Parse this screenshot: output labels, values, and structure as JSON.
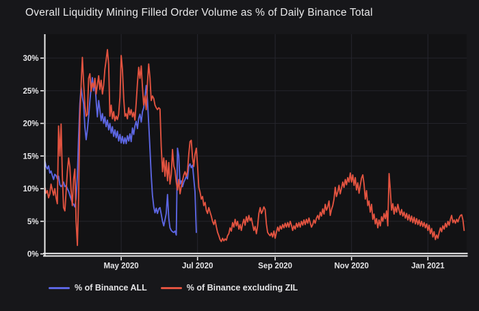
{
  "header": {
    "title": "Overall Liquidity Mining Filled Order Volume as % of Daily Binance Total"
  },
  "colors": {
    "background": "#17171a",
    "plot_background": "#121214",
    "grid": "#24242b",
    "grid_vertical": "#27272f",
    "axis": "#ededed",
    "text": "#e6e6e8",
    "title_text": "#e9e9ea",
    "series_all": "#5c66e2",
    "series_excl_zil": "#e25340"
  },
  "chart_data": {
    "type": "line",
    "title": "Overall Liquidity Mining Filled Order Volume as % of Daily Binance Total",
    "xlabel": "",
    "ylabel": "",
    "x_range": [
      "2020-03-01",
      "2021-02-01"
    ],
    "y_range": [
      0,
      33.6
    ],
    "grid": true,
    "legend_position": "bottom-left",
    "y_unit": "%",
    "x_ticks": [
      {
        "date": "2020-05-01",
        "label": "May 2020"
      },
      {
        "date": "2020-07-01",
        "label": "Jul 2020"
      },
      {
        "date": "2020-09-01",
        "label": "Sep 2020"
      },
      {
        "date": "2020-11-01",
        "label": "Nov 2020"
      },
      {
        "date": "2021-01-01",
        "label": "Jan 2021"
      }
    ],
    "y_ticks": [
      {
        "value": 0,
        "label": "0%"
      },
      {
        "value": 5,
        "label": "5%"
      },
      {
        "value": 10,
        "label": "10%"
      },
      {
        "value": 15,
        "label": "15%"
      },
      {
        "value": 20,
        "label": "20%"
      },
      {
        "value": 25,
        "label": "25%"
      },
      {
        "value": 30,
        "label": "30%"
      }
    ],
    "series": [
      {
        "name": "% of Binance ALL",
        "color": "#5c66e2",
        "start": "2020-03-01",
        "frequency": "daily",
        "values": [
          14.3,
          13.4,
          13.0,
          13.5,
          12.4,
          12.7,
          12.0,
          11.4,
          12.2,
          12.0,
          11.5,
          11.9,
          10.6,
          10.3,
          10.6,
          11.0,
          10.3,
          10.5,
          10.0,
          9.6,
          9.0,
          8.4,
          7.8,
          7.6,
          7.2,
          8.5,
          12.0,
          18.0,
          23.0,
          25.6,
          24.0,
          23.0,
          19.5,
          17.5,
          19.0,
          21.0,
          23.5,
          25.5,
          27.0,
          25.0,
          26.5,
          23.5,
          21.0,
          23.5,
          22.0,
          20.4,
          21.5,
          20.0,
          21.0,
          19.5,
          20.5,
          19.0,
          20.0,
          18.5,
          19.5,
          18.0,
          19.0,
          17.8,
          18.8,
          17.3,
          18.3,
          17.0,
          18.0,
          16.9,
          17.8,
          16.9,
          18.1,
          17.3,
          18.4,
          17.2,
          19.3,
          18.3,
          19.6,
          20.3,
          19.2,
          20.8,
          21.4,
          20.2,
          21.8,
          22.4,
          24.0,
          25.8,
          23.5,
          20.0,
          16.0,
          12.0,
          9.0,
          7.2,
          6.3,
          7.0,
          6.2,
          6.9,
          7.1,
          6.1,
          5.0,
          4.3,
          5.2,
          6.2,
          9.1,
          5.5,
          4.0,
          3.6,
          3.4,
          3.3,
          3.5,
          2.9,
          16.2,
          15.0,
          10.7,
          11.2,
          10.3,
          11.0,
          11.4,
          11.9,
          11.5,
          13.4,
          13.8,
          13.2,
          13.6,
          11.5,
          9.5,
          3.3
        ]
      },
      {
        "name": "% of Binance excluding ZIL",
        "color": "#e25340",
        "start": "2020-03-01",
        "frequency": "daily",
        "values": [
          10.3,
          9.3,
          9.7,
          8.6,
          9.2,
          10.7,
          9.8,
          9.0,
          10.0,
          8.6,
          7.7,
          19.6,
          15.0,
          19.9,
          12.0,
          7.1,
          6.6,
          9.5,
          12.6,
          14.7,
          13.3,
          9.8,
          7.4,
          11.5,
          13.0,
          5.0,
          1.3,
          9.0,
          21.0,
          26.0,
          30.1,
          26.2,
          22.8,
          21.1,
          21.4,
          26.9,
          27.6,
          24.9,
          26.2,
          25.5,
          26.9,
          24.5,
          25.9,
          27.3,
          25.2,
          26.6,
          24.5,
          25.9,
          28.3,
          29.7,
          31.3,
          29.0,
          21.1,
          22.8,
          20.7,
          21.8,
          20.4,
          21.1,
          20.6,
          21.4,
          24.0,
          30.4,
          28.3,
          23.8,
          21.1,
          21.5,
          20.7,
          22.4,
          21.3,
          22.1,
          21.0,
          21.7,
          20.5,
          23.1,
          26.2,
          28.6,
          26.9,
          28.8,
          25.5,
          22.8,
          24.2,
          22.1,
          26.2,
          29.1,
          26.9,
          23.5,
          24.2,
          23.8,
          22.8,
          22.4,
          22.1,
          22.4,
          22.2,
          16.5,
          12.6,
          14.7,
          11.9,
          14.3,
          11.2,
          14.0,
          10.7,
          12.2,
          16.0,
          13.5,
          12.8,
          11.0,
          9.8,
          11.4,
          9.2,
          10.3,
          11.2,
          12.1,
          12.6,
          11.9,
          12.6,
          15.3,
          17.2,
          17.4,
          14.7,
          13.4,
          15.3,
          16.2,
          13.5,
          10.2,
          9.5,
          8.4,
          8.8,
          7.4,
          7.9,
          6.7,
          6.2,
          7.1,
          6.4,
          5.8,
          5.0,
          4.5,
          5.2,
          4.2,
          3.3,
          2.8,
          2.2,
          1.9,
          2.4,
          2.0,
          2.3,
          2.1,
          2.8,
          3.1,
          4.0,
          3.5,
          4.8,
          4.1,
          5.3,
          4.3,
          5.0,
          3.8,
          4.5,
          3.6,
          4.6,
          5.3,
          4.4,
          5.7,
          4.9,
          5.9,
          5.1,
          5.5,
          4.5,
          3.6,
          4.2,
          3.1,
          4.3,
          6.2,
          7.1,
          6.2,
          6.6,
          7.2,
          6.8,
          4.6,
          3.3,
          3.0,
          2.8,
          3.2,
          2.6,
          3.5,
          2.4,
          3.3,
          4.1,
          3.5,
          4.3,
          3.8,
          4.5,
          4.0,
          4.7,
          4.1,
          4.8,
          4.1,
          5.0,
          4.4,
          3.6,
          4.3,
          3.8,
          4.7,
          4.1,
          4.8,
          4.1,
          5.0,
          4.4,
          5.2,
          4.5,
          5.3,
          4.7,
          5.5,
          4.8,
          4.1,
          4.5,
          5.2,
          4.7,
          5.5,
          5.9,
          5.3,
          6.4,
          5.8,
          6.9,
          6.1,
          7.6,
          6.7,
          7.2,
          8.1,
          5.9,
          6.8,
          7.4,
          8.4,
          10.2,
          8.8,
          9.5,
          10.5,
          9.2,
          10.1,
          11.0,
          10.2,
          11.4,
          10.6,
          11.7,
          11.0,
          12.4,
          11.0,
          12.1,
          10.5,
          11.7,
          9.8,
          10.9,
          9.3,
          10.5,
          11.6,
          12.1,
          10.7,
          8.4,
          9.7,
          7.4,
          8.1,
          6.4,
          7.6,
          5.3,
          6.1,
          4.6,
          5.4,
          4.0,
          5.2,
          4.3,
          5.7,
          5.0,
          6.2,
          5.4,
          6.6,
          4.3,
          12.3,
          9.8,
          6.7,
          7.7,
          6.1,
          7.2,
          6.4,
          7.6,
          6.7,
          6.0,
          6.8,
          5.8,
          6.4,
          5.5,
          6.2,
          5.2,
          6.0,
          5.0,
          5.8,
          4.8,
          5.6,
          4.6,
          5.4,
          4.5,
          5.2,
          4.3,
          5.0,
          4.2,
          4.8,
          4.0,
          4.6,
          3.6,
          4.4,
          3.1,
          3.9,
          2.6,
          3.4,
          2.2,
          2.9,
          2.4,
          3.3,
          4.0,
          3.4,
          4.3,
          3.8,
          4.7,
          4.1,
          5.0,
          4.4,
          5.3,
          5.9,
          4.8,
          5.2,
          4.7,
          5.3,
          4.9,
          5.5,
          5.9,
          6.0,
          5.2,
          3.6
        ]
      }
    ]
  }
}
